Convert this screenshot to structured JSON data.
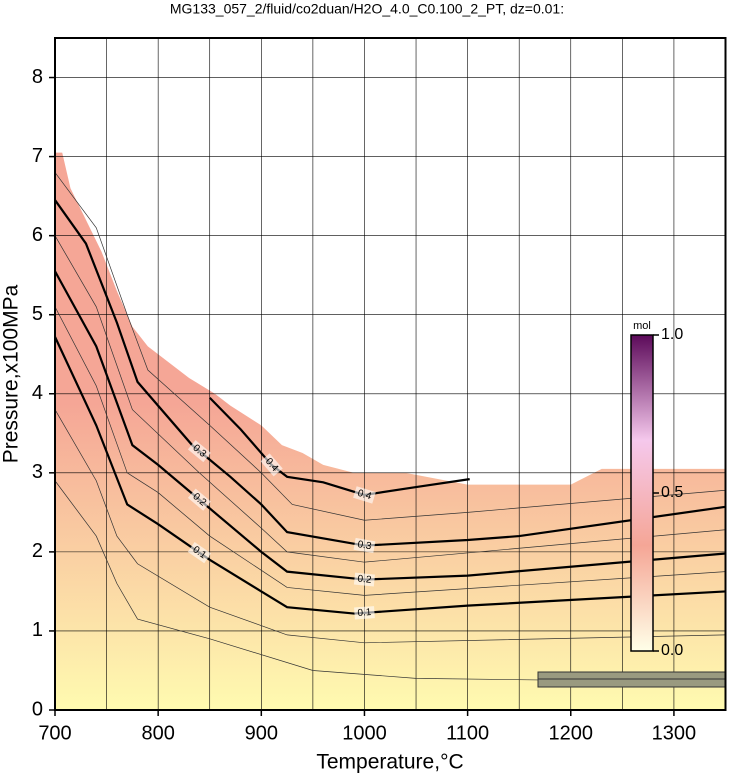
{
  "chart_data": {
    "type": "contour",
    "title": "MG133_057_2/fluid/co2duan/H2O_4.0_C0.100_2_PT, dz=0.01:",
    "x_label": "Temperature,°C",
    "y_label": "Pressure,x100MPa",
    "xlim": [
      700,
      1350
    ],
    "ylim": [
      0,
      8.5
    ],
    "xticks": [
      700,
      800,
      900,
      1000,
      1100,
      1200,
      1300
    ],
    "xgrid": [
      750,
      800,
      850,
      900,
      950,
      1000,
      1050,
      1100,
      1150,
      1200,
      1250,
      1300
    ],
    "yticks": [
      0,
      1,
      2,
      3,
      4,
      5,
      6,
      7,
      8
    ],
    "grid": true,
    "field": {
      "x": [
        700,
        707,
        715,
        730,
        745,
        760,
        775,
        790,
        800,
        830,
        855,
        870,
        900,
        920,
        940,
        960,
        990,
        1010,
        1040,
        1080,
        1100,
        1150,
        1200,
        1230,
        1350
      ],
      "values": [
        7.05,
        7.05,
        6.6,
        6.2,
        5.8,
        5.3,
        4.85,
        4.6,
        4.5,
        4.2,
        4.0,
        3.85,
        3.6,
        3.35,
        3.25,
        3.1,
        3.0,
        3.0,
        3.0,
        2.9,
        2.85,
        2.85,
        2.85,
        3.05,
        3.05
      ],
      "color_low": "#fffbb0",
      "color_high": "#f5a696"
    },
    "series": [
      {
        "level": 0.02,
        "major": false,
        "color": "#333333",
        "x": [
          700,
          740,
          760,
          780,
          850,
          950,
          1050,
          1350
        ],
        "values": [
          2.9,
          2.2,
          1.6,
          1.15,
          0.9,
          0.5,
          0.4,
          0.35
        ]
      },
      {
        "level": 0.05,
        "major": false,
        "color": "#333333",
        "x": [
          700,
          740,
          760,
          780,
          850,
          925,
          1000,
          1350
        ],
        "values": [
          3.8,
          2.9,
          2.2,
          1.85,
          1.3,
          0.95,
          0.85,
          0.95
        ]
      },
      {
        "level": 0.1,
        "major": true,
        "color": "#000000",
        "x": [
          700,
          740,
          770,
          800,
          850,
          900,
          925,
          990,
          1100,
          1350
        ],
        "values": [
          4.72,
          3.6,
          2.6,
          2.35,
          1.9,
          1.5,
          1.3,
          1.22,
          1.32,
          1.5
        ]
      },
      {
        "level": 0.15,
        "major": false,
        "color": "#333333",
        "x": [
          700,
          740,
          770,
          800,
          850,
          925,
          1000,
          1350
        ],
        "values": [
          5.1,
          4.1,
          3.0,
          2.75,
          2.2,
          1.55,
          1.45,
          1.75
        ]
      },
      {
        "level": 0.2,
        "major": true,
        "color": "#000000",
        "x": [
          700,
          740,
          775,
          800,
          850,
          900,
          925,
          1000,
          1100,
          1350
        ],
        "values": [
          5.55,
          4.6,
          3.35,
          3.1,
          2.55,
          2.0,
          1.75,
          1.65,
          1.7,
          1.98
        ]
      },
      {
        "level": 0.25,
        "major": false,
        "color": "#333333",
        "x": [
          700,
          740,
          775,
          840,
          900,
          925,
          1000,
          1350
        ],
        "values": [
          6.0,
          5.1,
          3.8,
          3.0,
          2.3,
          2.0,
          1.87,
          2.28
        ]
      },
      {
        "level": 0.3,
        "major": true,
        "color": "#000000",
        "x": [
          700,
          730,
          760,
          780,
          833,
          870,
          900,
          925,
          1000,
          1100,
          1150,
          1350
        ],
        "values": [
          6.45,
          5.9,
          4.9,
          4.15,
          3.35,
          2.95,
          2.6,
          2.25,
          2.08,
          2.15,
          2.2,
          2.57
        ]
      },
      {
        "level": 0.35,
        "major": false,
        "color": "#333333",
        "x": [
          700,
          740,
          770,
          790,
          850,
          900,
          930,
          1000,
          1100,
          1350
        ],
        "values": [
          6.8,
          6.1,
          5.0,
          4.3,
          3.6,
          3.0,
          2.6,
          2.4,
          2.5,
          2.78
        ]
      },
      {
        "level": 0.4,
        "major": true,
        "color": "#000000",
        "x": [
          850,
          880,
          910,
          925,
          960,
          1000,
          1050,
          1102
        ],
        "values": [
          3.95,
          3.55,
          3.1,
          2.95,
          2.88,
          2.72,
          2.82,
          2.92
        ]
      }
    ],
    "colorbar": {
      "title": "mol",
      "lim": [
        0,
        1
      ],
      "ticks": [
        {
          "value": 0,
          "label": "0.0"
        },
        0.5,
        {
          "value": 1,
          "label": "1.0"
        }
      ],
      "colors": [
        "#ffffe8",
        "#f5a696",
        "#f5c8ec",
        "#5c0a5a"
      ]
    }
  }
}
